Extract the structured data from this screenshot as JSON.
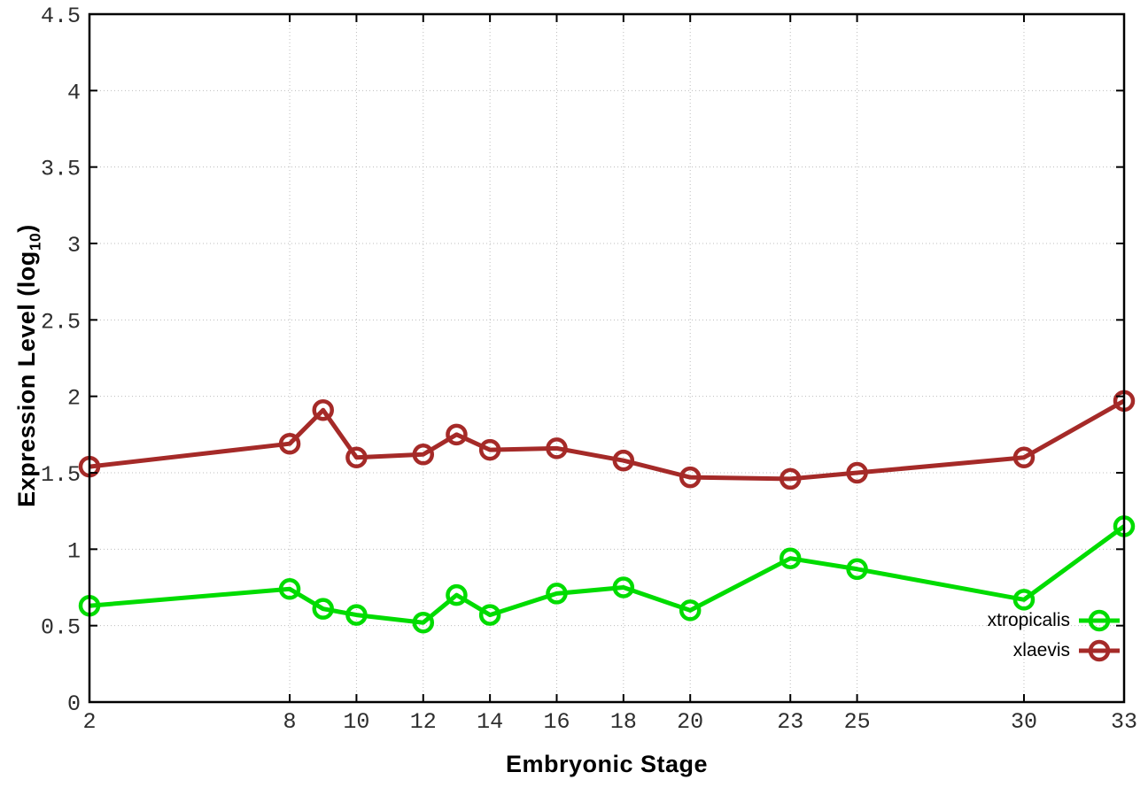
{
  "figure": {
    "xlabel": "Embryonic Stage",
    "ylabel_prefix": "Expression Level (log",
    "ylabel_sub": "10",
    "ylabel_suffix": ")",
    "background_color": "#ffffff",
    "grid_color": "#bcbcbc",
    "border_color": "#000000"
  },
  "chart_data": {
    "type": "line",
    "title": "",
    "xlabel": "Embryonic Stage",
    "ylabel": "Expression Level (log10)",
    "xlim": [
      2,
      33
    ],
    "ylim": [
      0,
      4.5
    ],
    "grid": true,
    "legend_position": "inside-bottom-right",
    "marker_style": "open-circle",
    "x": [
      2,
      8,
      9,
      10,
      12,
      13,
      14,
      16,
      18,
      20,
      23,
      25,
      30,
      33
    ],
    "x_ticks": [
      2,
      8,
      10,
      12,
      14,
      16,
      18,
      20,
      23,
      25,
      30,
      33
    ],
    "x_tick_labels": [
      "2",
      "8",
      "10",
      "12",
      "14",
      "16",
      "18",
      "20",
      "23",
      "25",
      "30",
      "33"
    ],
    "y_ticks": [
      0,
      0.5,
      1,
      1.5,
      2,
      2.5,
      3,
      3.5,
      4,
      4.5
    ],
    "y_tick_labels": [
      "0",
      "0.5",
      "1",
      "1.5",
      "2",
      "2.5",
      "3",
      "3.5",
      "4",
      "4.5"
    ],
    "series": [
      {
        "name": "xtropicalis",
        "color": "#00dc00",
        "values": [
          0.63,
          0.74,
          0.61,
          0.57,
          0.52,
          0.7,
          0.57,
          0.71,
          0.75,
          0.6,
          0.94,
          0.87,
          0.67,
          1.15
        ]
      },
      {
        "name": "xlaevis",
        "color": "#a52a28",
        "values": [
          1.54,
          1.69,
          1.91,
          1.6,
          1.62,
          1.75,
          1.65,
          1.66,
          1.58,
          1.47,
          1.46,
          1.5,
          1.6,
          1.97
        ]
      }
    ]
  }
}
